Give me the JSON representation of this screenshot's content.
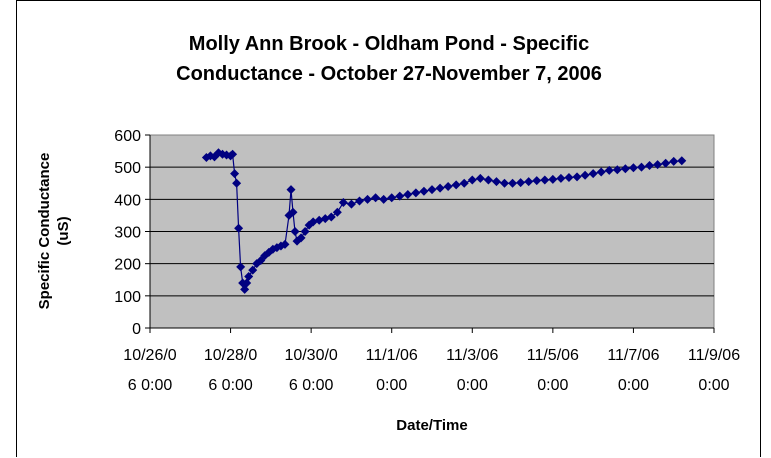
{
  "chart_data": {
    "type": "line",
    "title_lines": [
      "Molly Ann Brook - Oldham Pond - Specific",
      "Conductance - October 27-November 7, 2006"
    ],
    "xlabel": "Date/Time",
    "ylabel_lines": [
      "Specific Conductance",
      "(uS)"
    ],
    "x_tick_labels": [
      [
        "10/26/0",
        "6 0:00"
      ],
      [
        "10/28/0",
        "6 0:00"
      ],
      [
        "10/30/0",
        "6 0:00"
      ],
      [
        "11/1/06",
        "0:00"
      ],
      [
        "11/3/06",
        "0:00"
      ],
      [
        "11/5/06",
        "0:00"
      ],
      [
        "11/7/06",
        "0:00"
      ],
      [
        "11/9/06",
        "0:00"
      ]
    ],
    "xlim_days_since_2006_10_26": [
      0,
      14
    ],
    "y_ticks": [
      0,
      100,
      200,
      300,
      400,
      500,
      600
    ],
    "ylim": [
      0,
      600
    ],
    "grid": "horizontal",
    "plot_background": "#c0c0c0",
    "series_color": "#000080",
    "marker": "diamond",
    "series": [
      {
        "x": [
          1.4,
          1.5,
          1.6,
          1.7,
          1.8,
          1.9,
          2.0,
          2.05,
          2.1,
          2.15,
          2.2,
          2.25,
          2.3,
          2.35,
          2.4,
          2.45,
          2.55,
          2.65,
          2.75,
          2.85,
          2.95,
          3.05,
          3.15,
          3.25,
          3.35,
          3.45,
          3.5,
          3.55,
          3.6,
          3.65,
          3.75,
          3.85,
          3.95,
          4.05,
          4.2,
          4.35,
          4.5,
          4.65,
          4.8,
          5.0,
          5.2,
          5.4,
          5.6,
          5.8,
          6.0,
          6.2,
          6.4,
          6.6,
          6.8,
          7.0,
          7.2,
          7.4,
          7.6,
          7.8,
          8.0,
          8.2,
          8.4,
          8.6,
          8.8,
          9.0,
          9.2,
          9.4,
          9.6,
          9.8,
          10.0,
          10.2,
          10.4,
          10.6,
          10.8,
          11.0,
          11.2,
          11.4,
          11.6,
          11.8,
          12.0,
          12.2,
          12.4,
          12.6,
          12.8,
          13.0,
          13.2
        ],
        "y": [
          530,
          535,
          532,
          545,
          540,
          538,
          535,
          540,
          480,
          450,
          310,
          190,
          140,
          120,
          140,
          160,
          180,
          200,
          210,
          225,
          235,
          245,
          250,
          255,
          260,
          350,
          430,
          360,
          300,
          270,
          280,
          300,
          320,
          330,
          335,
          340,
          345,
          360,
          390,
          385,
          395,
          400,
          405,
          400,
          405,
          410,
          415,
          420,
          425,
          430,
          435,
          440,
          445,
          450,
          460,
          465,
          460,
          455,
          450,
          450,
          452,
          455,
          458,
          460,
          462,
          465,
          468,
          470,
          475,
          480,
          485,
          490,
          492,
          495,
          498,
          500,
          505,
          508,
          512,
          518,
          520
        ]
      }
    ]
  }
}
